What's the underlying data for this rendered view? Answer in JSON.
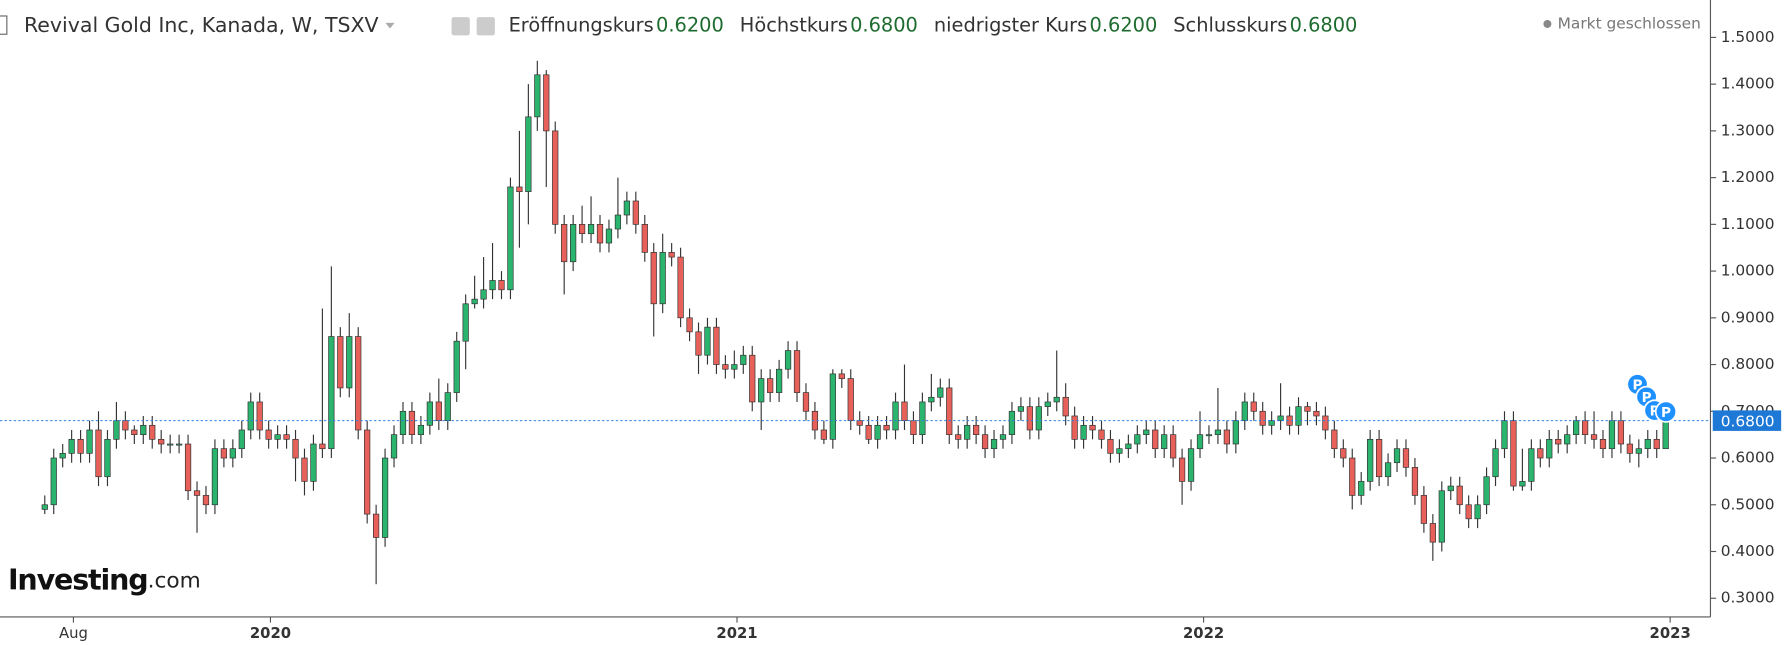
{
  "chart_data": {
    "type": "candlestick",
    "title": "Revival Gold Inc, Kanada, W, TSXV",
    "quote": [
      {
        "label": "Eröffnungskurs",
        "value": "0.6200"
      },
      {
        "label": "Höchstkurs",
        "value": "0.6800"
      },
      {
        "label": "niedrigster Kurs",
        "value": "0.6200"
      },
      {
        "label": "Schlusskurs",
        "value": "0.6800"
      }
    ],
    "status": "Markt geschlossen",
    "brand": "Investing",
    "brand_suffix": ".com",
    "up_color": "#2ab46e",
    "down_color": "#e8605a",
    "last_price": {
      "value": 0.68,
      "label": "0.6800"
    },
    "events": [
      "P",
      "P",
      "P",
      "P"
    ],
    "xlim": [
      -5,
      186
    ],
    "xticks": [
      {
        "value": 3.2,
        "label": "Aug"
      },
      {
        "value": 25.2,
        "label": "2020"
      },
      {
        "value": 77.3,
        "label": "2021"
      },
      {
        "value": 129.4,
        "label": "2022"
      },
      {
        "value": 181.5,
        "label": "2023"
      }
    ],
    "ylim": [
      0.26,
      1.58
    ],
    "yticks": [
      {
        "value": 0.3,
        "label": "0.3000"
      },
      {
        "value": 0.4,
        "label": "0.4000"
      },
      {
        "value": 0.5,
        "label": "0.5000"
      },
      {
        "value": 0.6,
        "label": "0.6000"
      },
      {
        "value": 0.7,
        "label": "0.7000"
      },
      {
        "value": 0.8,
        "label": "0.8000"
      },
      {
        "value": 0.9,
        "label": "0.9000"
      },
      {
        "value": 1.0,
        "label": "1.0000"
      },
      {
        "value": 1.1,
        "label": "1.1000"
      },
      {
        "value": 1.2,
        "label": "1.2000"
      },
      {
        "value": 1.3,
        "label": "1.3000"
      },
      {
        "value": 1.4,
        "label": "1.4000"
      },
      {
        "value": 1.5,
        "label": "1.5000"
      }
    ],
    "ohlc": [
      [
        0.49,
        0.52,
        0.48,
        0.5
      ],
      [
        0.5,
        0.62,
        0.48,
        0.6
      ],
      [
        0.6,
        0.63,
        0.58,
        0.61
      ],
      [
        0.61,
        0.66,
        0.59,
        0.64
      ],
      [
        0.64,
        0.66,
        0.59,
        0.61
      ],
      [
        0.61,
        0.68,
        0.59,
        0.66
      ],
      [
        0.66,
        0.7,
        0.54,
        0.56
      ],
      [
        0.56,
        0.66,
        0.54,
        0.64
      ],
      [
        0.64,
        0.72,
        0.62,
        0.68
      ],
      [
        0.68,
        0.7,
        0.64,
        0.66
      ],
      [
        0.66,
        0.67,
        0.63,
        0.65
      ],
      [
        0.65,
        0.69,
        0.63,
        0.67
      ],
      [
        0.67,
        0.69,
        0.62,
        0.64
      ],
      [
        0.64,
        0.66,
        0.61,
        0.63
      ],
      [
        0.63,
        0.65,
        0.61,
        0.63
      ],
      [
        0.63,
        0.65,
        0.61,
        0.63
      ],
      [
        0.63,
        0.65,
        0.51,
        0.53
      ],
      [
        0.53,
        0.55,
        0.44,
        0.52
      ],
      [
        0.52,
        0.54,
        0.48,
        0.5
      ],
      [
        0.5,
        0.64,
        0.48,
        0.62
      ],
      [
        0.62,
        0.64,
        0.58,
        0.6
      ],
      [
        0.6,
        0.64,
        0.58,
        0.62
      ],
      [
        0.62,
        0.68,
        0.6,
        0.66
      ],
      [
        0.66,
        0.74,
        0.64,
        0.72
      ],
      [
        0.72,
        0.74,
        0.64,
        0.66
      ],
      [
        0.66,
        0.68,
        0.62,
        0.64
      ],
      [
        0.64,
        0.67,
        0.62,
        0.65
      ],
      [
        0.65,
        0.67,
        0.62,
        0.64
      ],
      [
        0.64,
        0.66,
        0.55,
        0.6
      ],
      [
        0.6,
        0.62,
        0.52,
        0.55
      ],
      [
        0.55,
        0.65,
        0.53,
        0.63
      ],
      [
        0.63,
        0.92,
        0.6,
        0.62
      ],
      [
        0.62,
        1.01,
        0.6,
        0.86
      ],
      [
        0.86,
        0.88,
        0.73,
        0.75
      ],
      [
        0.75,
        0.91,
        0.73,
        0.86
      ],
      [
        0.86,
        0.88,
        0.64,
        0.66
      ],
      [
        0.66,
        0.68,
        0.46,
        0.48
      ],
      [
        0.48,
        0.5,
        0.33,
        0.43
      ],
      [
        0.43,
        0.62,
        0.41,
        0.6
      ],
      [
        0.6,
        0.67,
        0.58,
        0.65
      ],
      [
        0.65,
        0.72,
        0.63,
        0.7
      ],
      [
        0.7,
        0.72,
        0.63,
        0.65
      ],
      [
        0.65,
        0.69,
        0.63,
        0.67
      ],
      [
        0.67,
        0.74,
        0.65,
        0.72
      ],
      [
        0.72,
        0.77,
        0.66,
        0.68
      ],
      [
        0.68,
        0.76,
        0.66,
        0.74
      ],
      [
        0.74,
        0.87,
        0.72,
        0.85
      ],
      [
        0.85,
        0.95,
        0.79,
        0.93
      ],
      [
        0.93,
        0.99,
        0.92,
        0.94
      ],
      [
        0.94,
        1.03,
        0.92,
        0.96
      ],
      [
        0.96,
        1.06,
        0.94,
        0.98
      ],
      [
        0.98,
        1.0,
        0.94,
        0.96
      ],
      [
        0.96,
        1.2,
        0.94,
        1.18
      ],
      [
        1.18,
        1.3,
        1.05,
        1.17
      ],
      [
        1.17,
        1.4,
        1.1,
        1.33
      ],
      [
        1.33,
        1.45,
        1.3,
        1.42
      ],
      [
        1.42,
        1.43,
        1.18,
        1.3
      ],
      [
        1.3,
        1.32,
        1.08,
        1.1
      ],
      [
        1.1,
        1.12,
        0.95,
        1.02
      ],
      [
        1.02,
        1.12,
        1.0,
        1.1
      ],
      [
        1.1,
        1.14,
        1.06,
        1.08
      ],
      [
        1.08,
        1.16,
        1.06,
        1.1
      ],
      [
        1.1,
        1.12,
        1.04,
        1.06
      ],
      [
        1.06,
        1.11,
        1.04,
        1.09
      ],
      [
        1.09,
        1.2,
        1.07,
        1.12
      ],
      [
        1.12,
        1.17,
        1.1,
        1.15
      ],
      [
        1.15,
        1.17,
        1.08,
        1.1
      ],
      [
        1.1,
        1.12,
        1.02,
        1.04
      ],
      [
        1.04,
        1.06,
        0.86,
        0.93
      ],
      [
        0.93,
        1.08,
        0.91,
        1.04
      ],
      [
        1.04,
        1.06,
        1.01,
        1.03
      ],
      [
        1.03,
        1.05,
        0.88,
        0.9
      ],
      [
        0.9,
        0.92,
        0.85,
        0.87
      ],
      [
        0.87,
        0.89,
        0.78,
        0.82
      ],
      [
        0.82,
        0.9,
        0.8,
        0.88
      ],
      [
        0.88,
        0.9,
        0.78,
        0.8
      ],
      [
        0.8,
        0.82,
        0.77,
        0.79
      ],
      [
        0.79,
        0.83,
        0.77,
        0.8
      ],
      [
        0.8,
        0.84,
        0.78,
        0.82
      ],
      [
        0.82,
        0.84,
        0.7,
        0.72
      ],
      [
        0.72,
        0.79,
        0.66,
        0.77
      ],
      [
        0.77,
        0.79,
        0.72,
        0.74
      ],
      [
        0.74,
        0.81,
        0.72,
        0.79
      ],
      [
        0.79,
        0.85,
        0.77,
        0.83
      ],
      [
        0.83,
        0.85,
        0.72,
        0.74
      ],
      [
        0.74,
        0.76,
        0.68,
        0.7
      ],
      [
        0.7,
        0.72,
        0.64,
        0.66
      ],
      [
        0.66,
        0.68,
        0.63,
        0.64
      ],
      [
        0.64,
        0.79,
        0.62,
        0.78
      ],
      [
        0.78,
        0.79,
        0.75,
        0.77
      ],
      [
        0.77,
        0.79,
        0.66,
        0.68
      ],
      [
        0.68,
        0.7,
        0.65,
        0.67
      ],
      [
        0.67,
        0.69,
        0.63,
        0.64
      ],
      [
        0.64,
        0.69,
        0.62,
        0.67
      ],
      [
        0.67,
        0.69,
        0.64,
        0.66
      ],
      [
        0.66,
        0.74,
        0.64,
        0.72
      ],
      [
        0.72,
        0.8,
        0.66,
        0.68
      ],
      [
        0.68,
        0.7,
        0.63,
        0.65
      ],
      [
        0.65,
        0.74,
        0.63,
        0.72
      ],
      [
        0.72,
        0.78,
        0.7,
        0.73
      ],
      [
        0.73,
        0.77,
        0.71,
        0.75
      ],
      [
        0.75,
        0.77,
        0.63,
        0.65
      ],
      [
        0.65,
        0.67,
        0.62,
        0.64
      ],
      [
        0.64,
        0.69,
        0.62,
        0.67
      ],
      [
        0.67,
        0.69,
        0.63,
        0.65
      ],
      [
        0.65,
        0.67,
        0.6,
        0.62
      ],
      [
        0.62,
        0.66,
        0.6,
        0.64
      ],
      [
        0.64,
        0.67,
        0.62,
        0.65
      ],
      [
        0.65,
        0.72,
        0.63,
        0.7
      ],
      [
        0.7,
        0.73,
        0.68,
        0.71
      ],
      [
        0.71,
        0.73,
        0.64,
        0.66
      ],
      [
        0.66,
        0.73,
        0.64,
        0.71
      ],
      [
        0.71,
        0.74,
        0.69,
        0.72
      ],
      [
        0.72,
        0.83,
        0.7,
        0.73
      ],
      [
        0.73,
        0.76,
        0.67,
        0.69
      ],
      [
        0.69,
        0.71,
        0.62,
        0.64
      ],
      [
        0.64,
        0.69,
        0.62,
        0.67
      ],
      [
        0.67,
        0.69,
        0.64,
        0.66
      ],
      [
        0.66,
        0.68,
        0.62,
        0.64
      ],
      [
        0.64,
        0.66,
        0.59,
        0.61
      ],
      [
        0.61,
        0.64,
        0.59,
        0.62
      ],
      [
        0.62,
        0.65,
        0.6,
        0.63
      ],
      [
        0.63,
        0.67,
        0.61,
        0.65
      ],
      [
        0.65,
        0.68,
        0.63,
        0.66
      ],
      [
        0.66,
        0.68,
        0.6,
        0.62
      ],
      [
        0.62,
        0.67,
        0.6,
        0.65
      ],
      [
        0.65,
        0.67,
        0.58,
        0.6
      ],
      [
        0.6,
        0.62,
        0.5,
        0.55
      ],
      [
        0.55,
        0.64,
        0.53,
        0.62
      ],
      [
        0.62,
        0.7,
        0.6,
        0.65
      ],
      [
        0.65,
        0.67,
        0.63,
        0.65
      ],
      [
        0.65,
        0.75,
        0.63,
        0.66
      ],
      [
        0.66,
        0.68,
        0.61,
        0.63
      ],
      [
        0.63,
        0.7,
        0.61,
        0.68
      ],
      [
        0.68,
        0.74,
        0.66,
        0.72
      ],
      [
        0.72,
        0.74,
        0.68,
        0.7
      ],
      [
        0.7,
        0.72,
        0.65,
        0.67
      ],
      [
        0.67,
        0.7,
        0.65,
        0.68
      ],
      [
        0.68,
        0.76,
        0.66,
        0.69
      ],
      [
        0.69,
        0.71,
        0.65,
        0.67
      ],
      [
        0.67,
        0.73,
        0.65,
        0.71
      ],
      [
        0.71,
        0.72,
        0.67,
        0.7
      ],
      [
        0.7,
        0.72,
        0.67,
        0.69
      ],
      [
        0.69,
        0.71,
        0.64,
        0.66
      ],
      [
        0.66,
        0.68,
        0.6,
        0.62
      ],
      [
        0.62,
        0.64,
        0.58,
        0.6
      ],
      [
        0.6,
        0.62,
        0.49,
        0.52
      ],
      [
        0.52,
        0.57,
        0.5,
        0.55
      ],
      [
        0.55,
        0.66,
        0.53,
        0.64
      ],
      [
        0.64,
        0.66,
        0.54,
        0.56
      ],
      [
        0.56,
        0.61,
        0.54,
        0.59
      ],
      [
        0.59,
        0.64,
        0.57,
        0.62
      ],
      [
        0.62,
        0.64,
        0.56,
        0.58
      ],
      [
        0.58,
        0.6,
        0.5,
        0.52
      ],
      [
        0.52,
        0.54,
        0.44,
        0.46
      ],
      [
        0.46,
        0.48,
        0.38,
        0.42
      ],
      [
        0.42,
        0.55,
        0.4,
        0.53
      ],
      [
        0.53,
        0.56,
        0.51,
        0.54
      ],
      [
        0.54,
        0.56,
        0.48,
        0.5
      ],
      [
        0.5,
        0.52,
        0.45,
        0.47
      ],
      [
        0.47,
        0.52,
        0.45,
        0.5
      ],
      [
        0.5,
        0.58,
        0.48,
        0.56
      ],
      [
        0.56,
        0.64,
        0.54,
        0.62
      ],
      [
        0.62,
        0.7,
        0.6,
        0.68
      ],
      [
        0.68,
        0.7,
        0.53,
        0.54
      ],
      [
        0.54,
        0.62,
        0.53,
        0.55
      ],
      [
        0.55,
        0.64,
        0.53,
        0.62
      ],
      [
        0.62,
        0.64,
        0.58,
        0.6
      ],
      [
        0.6,
        0.66,
        0.58,
        0.64
      ],
      [
        0.64,
        0.66,
        0.61,
        0.63
      ],
      [
        0.63,
        0.67,
        0.61,
        0.65
      ],
      [
        0.65,
        0.69,
        0.63,
        0.68
      ],
      [
        0.68,
        0.7,
        0.63,
        0.65
      ],
      [
        0.65,
        0.7,
        0.62,
        0.64
      ],
      [
        0.64,
        0.66,
        0.6,
        0.62
      ],
      [
        0.62,
        0.7,
        0.6,
        0.68
      ],
      [
        0.68,
        0.7,
        0.61,
        0.63
      ],
      [
        0.63,
        0.65,
        0.59,
        0.61
      ],
      [
        0.61,
        0.64,
        0.58,
        0.62
      ],
      [
        0.62,
        0.66,
        0.6,
        0.64
      ],
      [
        0.64,
        0.66,
        0.6,
        0.62
      ],
      [
        0.62,
        0.68,
        0.62,
        0.68
      ]
    ]
  }
}
